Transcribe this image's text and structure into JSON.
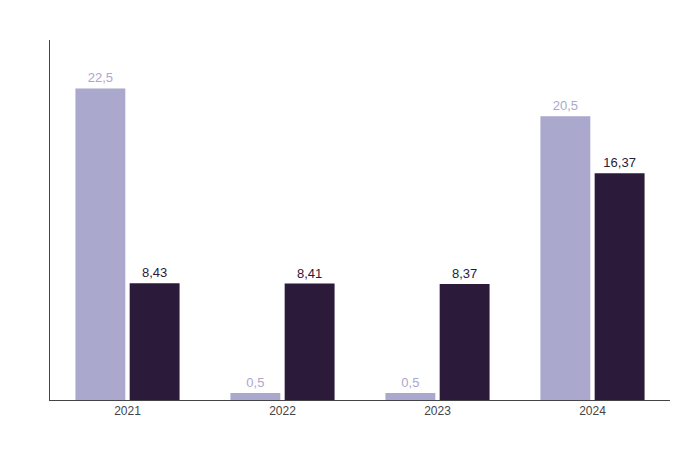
{
  "chart_data": {
    "type": "bar",
    "categories": [
      "2021",
      "2022",
      "2023",
      "2024"
    ],
    "series": [
      {
        "color": "#aaa8cc",
        "values": [
          22.5,
          0.5,
          0.5,
          20.5
        ],
        "value_labels": [
          "22,5",
          "0,5",
          "0,5",
          "20,5"
        ]
      },
      {
        "color": "#2b1a3a",
        "values": [
          8.43,
          8.41,
          8.37,
          16.37
        ],
        "value_labels": [
          "8,43",
          "8,41",
          "8,37",
          "16,37"
        ]
      }
    ],
    "ylim": [
      0,
      26
    ],
    "yticks": [],
    "tick_labels": "x",
    "data_labels": true,
    "grid": false
  }
}
